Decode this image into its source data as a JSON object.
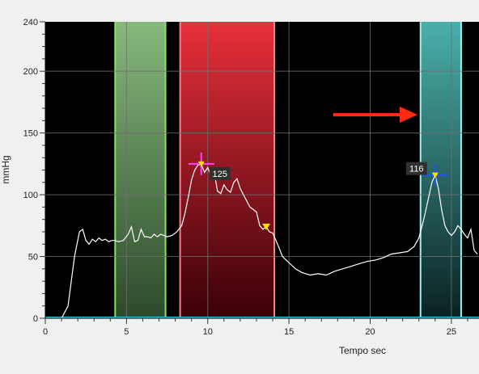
{
  "chart_data": {
    "type": "line",
    "xlabel": "Tempo sec",
    "ylabel": "mmHg",
    "xlim": [
      0,
      26.7
    ],
    "ylim": [
      0,
      240
    ],
    "x_ticks": [
      0,
      5,
      10,
      15,
      20,
      25
    ],
    "y_ticks": [
      0,
      50,
      100,
      150,
      200,
      240
    ],
    "grid": true,
    "colors": {
      "background": "#000000",
      "grid": "#707070",
      "trace": "#ffffff",
      "baseline": "#30c8e0",
      "arrow": "#ff2a10"
    },
    "regions": [
      {
        "name": "green",
        "x_start": 4.3,
        "x_end": 7.4,
        "color_top": "#86b97c",
        "color_bottom": "#2c4a2a",
        "edge": "#7ee860"
      },
      {
        "name": "red",
        "x_start": 8.3,
        "x_end": 14.1,
        "color_top": "#e8303a",
        "color_bottom": "#3a0008",
        "edge": "#ff8080"
      },
      {
        "name": "teal",
        "x_start": 23.1,
        "x_end": 25.6,
        "color_top": "#4ab0aa",
        "color_bottom": "#0a2222",
        "edge": "#a0f0f0"
      }
    ],
    "markers": [
      {
        "x": 9.6,
        "y": 125,
        "label": "125",
        "color": "#ff40ff",
        "type": "cross"
      },
      {
        "x": 24.0,
        "y": 116,
        "label": "116",
        "color": "#2050ff",
        "type": "cross"
      },
      {
        "x": 13.6,
        "y": 74,
        "label": "",
        "color": "#ffe000",
        "type": "triangle"
      }
    ],
    "series": [
      {
        "x": [
          0.0,
          1.0,
          1.4,
          1.8,
          2.1,
          2.3,
          2.5,
          2.7,
          2.9,
          3.1,
          3.3,
          3.5,
          3.7,
          3.9,
          4.1,
          4.3,
          4.5,
          4.8,
          5.1,
          5.3,
          5.5,
          5.7,
          5.9,
          6.1,
          6.3,
          6.5,
          6.7,
          6.9,
          7.1,
          7.3,
          7.5,
          7.8,
          8.1,
          8.4,
          8.6,
          8.8,
          9.0,
          9.2,
          9.4,
          9.6,
          9.8,
          10.0,
          10.2,
          10.4,
          10.6,
          10.8,
          11.0,
          11.2,
          11.4,
          11.6,
          11.8,
          12.0,
          12.2,
          12.4,
          12.6,
          12.8,
          13.0,
          13.2,
          13.4,
          13.6,
          13.8,
          14.0,
          14.3,
          14.6,
          15.0,
          15.4,
          15.8,
          16.3,
          16.8,
          17.3,
          17.8,
          18.3,
          18.8,
          19.3,
          19.8,
          20.3,
          20.8,
          21.3,
          21.8,
          22.3,
          22.7,
          23.0,
          23.3,
          23.6,
          23.8,
          24.0,
          24.2,
          24.4,
          24.6,
          24.8,
          25.0,
          25.2,
          25.4,
          25.6,
          25.8,
          26.0,
          26.2,
          26.4,
          26.6
        ],
        "values": [
          0,
          0,
          10,
          50,
          70,
          72,
          63,
          60,
          64,
          62,
          65,
          63,
          64,
          62,
          63,
          63,
          62,
          63,
          68,
          74,
          62,
          63,
          72,
          66,
          66,
          65,
          68,
          66,
          68,
          67,
          66,
          67,
          70,
          75,
          85,
          98,
          112,
          120,
          124,
          125,
          118,
          122,
          115,
          118,
          103,
          101,
          108,
          104,
          102,
          110,
          113,
          105,
          100,
          95,
          90,
          88,
          86,
          75,
          72,
          74,
          70,
          69,
          60,
          50,
          45,
          40,
          37,
          35,
          36,
          35,
          38,
          40,
          42,
          44,
          46,
          47,
          49,
          52,
          53,
          54,
          58,
          65,
          80,
          98,
          110,
          116,
          105,
          88,
          75,
          70,
          67,
          70,
          75,
          72,
          68,
          65,
          72,
          55,
          52
        ]
      }
    ]
  }
}
